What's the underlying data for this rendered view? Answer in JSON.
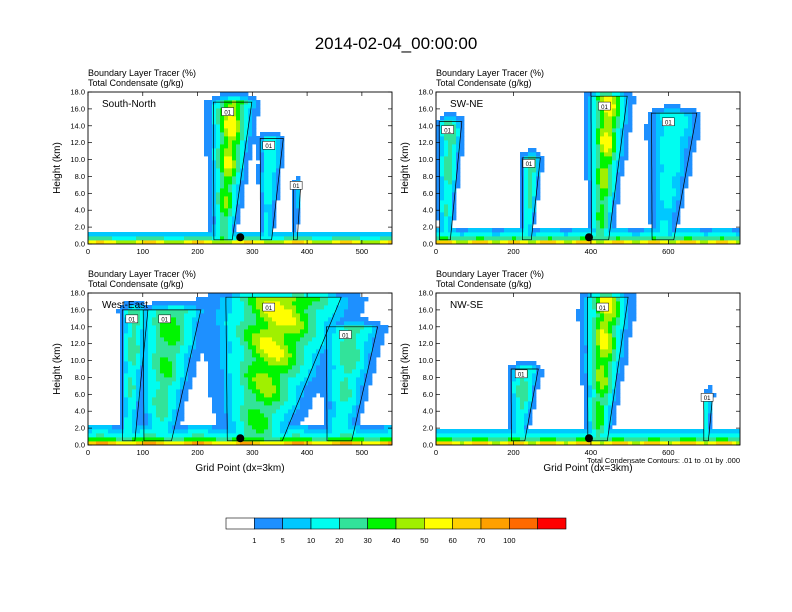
{
  "title": "2014-02-04_00:00:00",
  "subtitle_1": "Boundary Layer Tracer   (%)",
  "subtitle_2": "Total Condensate   (g/kg)",
  "ylabel": "Height (km)",
  "xlabel": "Grid Point (dx=3km)",
  "contour_note": "Total Condensate Contours: .01 to .01 by .000",
  "contour_label": "01",
  "y_ticks": [
    "0.0",
    "2.0",
    "4.0",
    "6.0",
    "8.0",
    "10.0",
    "12.0",
    "14.0",
    "16.0",
    "18.0"
  ],
  "colors": [
    "#ffffff",
    "#1e90ff",
    "#00c8ff",
    "#00fdf0",
    "#32e39a",
    "#00f500",
    "#a0f000",
    "#ffff00",
    "#ffd000",
    "#ffa000",
    "#ff6a00",
    "#ff0000"
  ],
  "colorbar_labels": [
    "1",
    "5",
    "10",
    "20",
    "30",
    "40",
    "50",
    "60",
    "70",
    "100"
  ],
  "panels": [
    {
      "name": "South-North",
      "x_ticks": [
        "0",
        "100",
        "200",
        "300",
        "400",
        "500"
      ],
      "xmax": 555,
      "point": 278
    },
    {
      "name": "SW-NE",
      "x_ticks": [
        "0",
        "200",
        "400",
        "600"
      ],
      "xmax": 785,
      "point": 395
    },
    {
      "name": "West-East",
      "x_ticks": [
        "0",
        "100",
        "200",
        "300",
        "400",
        "500"
      ],
      "xmax": 555,
      "point": 278
    },
    {
      "name": "NW-SE",
      "x_ticks": [
        "0",
        "200",
        "400",
        "600"
      ],
      "xmax": 785,
      "point": 395
    }
  ],
  "chart_data": [
    {
      "type": "heatmap",
      "title": "South-North",
      "xlabel": "",
      "ylabel": "Height (km)",
      "xlim": [
        0,
        555
      ],
      "ylim": [
        0,
        18
      ],
      "marker_x": 278,
      "marker_y": 0.8,
      "plumes": [
        {
          "x": 255,
          "w": 30,
          "top": 16.8,
          "amp": 60
        },
        {
          "x": 330,
          "w": 18,
          "top": 12.5,
          "amp": 20
        },
        {
          "x": 380,
          "w": 6,
          "top": 7.4,
          "amp": 10
        }
      ],
      "boundary_layer": {
        "top": 1.0,
        "amp": 100
      }
    },
    {
      "type": "heatmap",
      "title": "SW-NE",
      "xlabel": "",
      "ylabel": "Height (km)",
      "xlim": [
        0,
        785
      ],
      "ylim": [
        0,
        18
      ],
      "marker_x": 395,
      "marker_y": 0.8,
      "plumes": [
        {
          "x": 435,
          "w": 40,
          "top": 17.5,
          "amp": 60
        },
        {
          "x": 30,
          "w": 25,
          "top": 14.5,
          "amp": 30
        },
        {
          "x": 240,
          "w": 20,
          "top": 10.2,
          "amp": 30
        },
        {
          "x": 600,
          "w": 50,
          "top": 15.5,
          "amp": 20
        }
      ],
      "boundary_layer": {
        "top": 1.2,
        "amp": 100
      }
    },
    {
      "type": "heatmap",
      "title": "West-East",
      "xlabel": "Grid Point (dx=3km)",
      "ylabel": "Height (km)",
      "xlim": [
        0,
        555
      ],
      "ylim": [
        0,
        18
      ],
      "marker_x": 278,
      "marker_y": 0.8,
      "plumes": [
        {
          "x": 330,
          "w": 90,
          "top": 17.5,
          "amp": 60
        },
        {
          "x": 140,
          "w": 45,
          "top": 16.0,
          "amp": 40
        },
        {
          "x": 80,
          "w": 20,
          "top": 16.0,
          "amp": 30
        },
        {
          "x": 470,
          "w": 40,
          "top": 14.0,
          "amp": 30
        }
      ],
      "boundary_layer": {
        "top": 1.5,
        "amp": 100
      }
    },
    {
      "type": "heatmap",
      "title": "NW-SE",
      "xlabel": "Grid Point (dx=3km)",
      "ylabel": "Height (km)",
      "xlim": [
        0,
        785
      ],
      "ylim": [
        0,
        18
      ],
      "marker_x": 395,
      "marker_y": 0.8,
      "plumes": [
        {
          "x": 430,
          "w": 45,
          "top": 17.5,
          "amp": 60
        },
        {
          "x": 220,
          "w": 30,
          "top": 9.0,
          "amp": 30
        },
        {
          "x": 700,
          "w": 10,
          "top": 6.0,
          "amp": 20
        }
      ],
      "boundary_layer": {
        "top": 1.3,
        "amp": 100
      }
    }
  ]
}
